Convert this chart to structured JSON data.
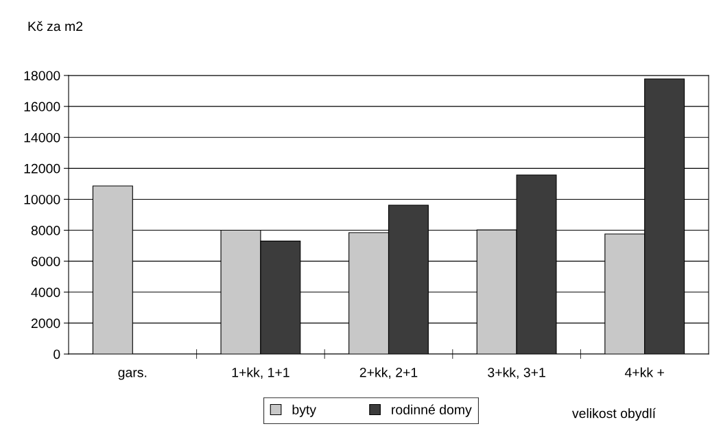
{
  "chart_data": {
    "type": "bar",
    "ylabel": "Kč za m2",
    "xlabel": "velikost obydlí",
    "categories": [
      "gars.",
      "1+kk, 1+1",
      "2+kk, 2+1",
      "3+kk, 3+1",
      "4+kk +"
    ],
    "series": [
      {
        "name": "byty",
        "color": "#c8c8c8",
        "values": [
          10860,
          8000,
          7850,
          8020,
          7760
        ]
      },
      {
        "name": "rodinné domy",
        "color": "#3c3c3c",
        "values": [
          null,
          7300,
          9620,
          11570,
          17780
        ]
      }
    ],
    "ylim": [
      0,
      18000
    ],
    "yticks": [
      0,
      2000,
      4000,
      6000,
      8000,
      10000,
      12000,
      14000,
      16000,
      18000
    ],
    "grid": "y",
    "legend": "bottom"
  }
}
